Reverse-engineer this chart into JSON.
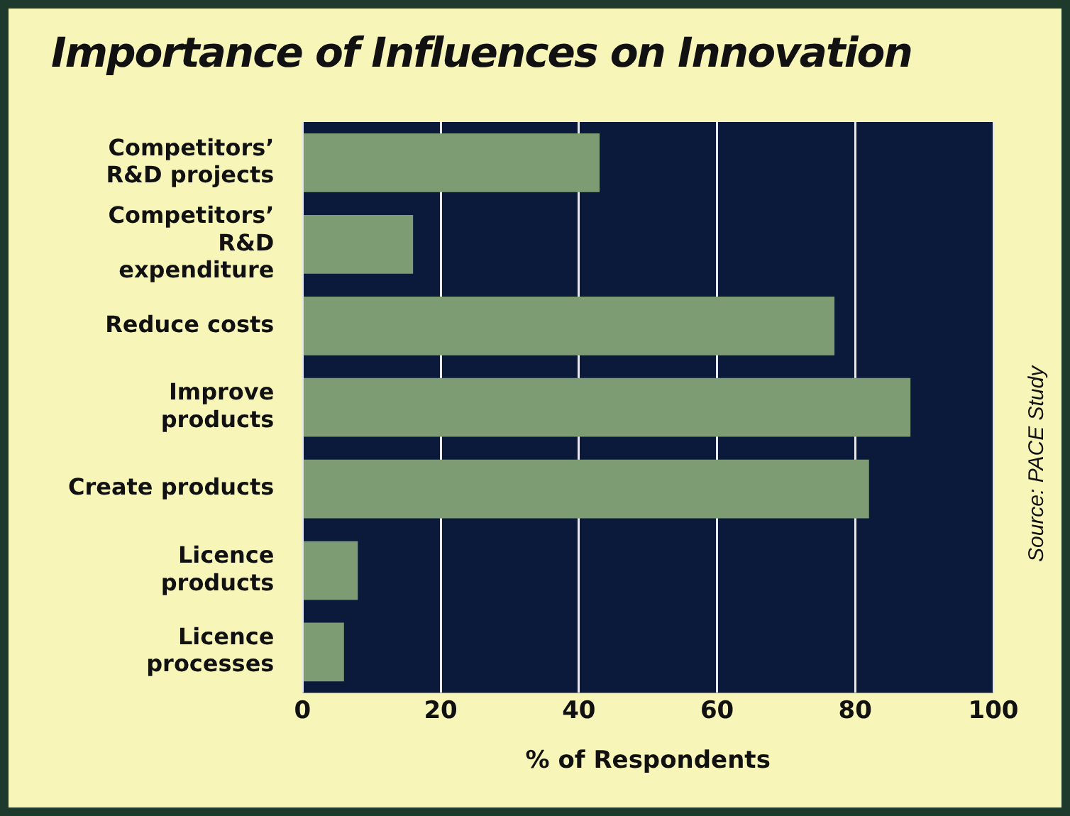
{
  "chart_data": {
    "type": "bar",
    "orientation": "horizontal",
    "title": "Importance of Influences on Innovation",
    "xlabel": "% of Respondents",
    "categories": [
      "Competitors’ R&D projects",
      "Competitors’ R&D expenditure",
      "Reduce costs",
      "Improve products",
      "Create products",
      "Licence products",
      "Licence processes"
    ],
    "values": [
      43,
      16,
      77,
      88,
      82,
      8,
      6
    ],
    "color": "#7d9c74",
    "xlim": [
      0,
      100
    ],
    "xticks": [
      0,
      20,
      40,
      60,
      80,
      100
    ],
    "grid": "x",
    "legend": false,
    "annotations": [
      "Source: PACE Study"
    ]
  }
}
